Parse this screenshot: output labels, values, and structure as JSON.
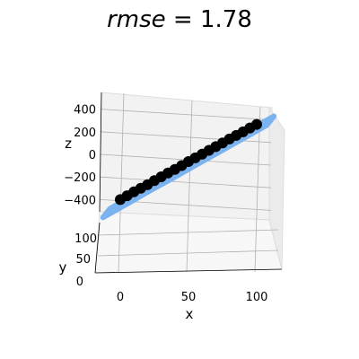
{
  "chart_data": {
    "type": "scatter",
    "title": "rmse = 1.78",
    "title_parts": {
      "label": "rmse",
      "equals": " = ",
      "value": "1.78"
    },
    "xlabel": "x",
    "ylabel": "y",
    "zlabel": "z",
    "x_ticks": [
      "0",
      "50",
      "100"
    ],
    "y_ticks": [
      "0",
      "50",
      "100"
    ],
    "z_ticks": [
      "400",
      "200",
      "0",
      "−200",
      "−400"
    ],
    "xlim": [
      -15,
      115
    ],
    "ylim": [
      0,
      120
    ],
    "zlim": [
      -520,
      560
    ],
    "grid": true,
    "colors": {
      "fit_surface": "#7ab3ef",
      "points": "#000000"
    },
    "series": [
      {
        "kind": "surface",
        "x": [
          -10,
          0,
          10,
          20,
          30,
          40,
          50,
          60,
          70,
          80,
          90,
          100,
          110
        ],
        "z": [
          -510,
          -450,
          -390,
          -328,
          -268,
          -210,
          -150,
          -90,
          -30,
          30,
          90,
          150,
          210
        ]
      },
      {
        "kind": "points",
        "x": [
          0,
          5,
          10,
          15,
          20,
          25,
          30,
          35,
          40,
          45,
          50,
          55,
          60,
          65,
          70,
          75,
          80,
          85,
          90,
          95,
          100
        ],
        "z": [
          -400,
          -370,
          -340,
          -312,
          -283,
          -252,
          -222,
          -193,
          -165,
          -135,
          -103,
          -75,
          -46,
          -16,
          13,
          42,
          72,
          100,
          128,
          158,
          186
        ]
      }
    ]
  }
}
